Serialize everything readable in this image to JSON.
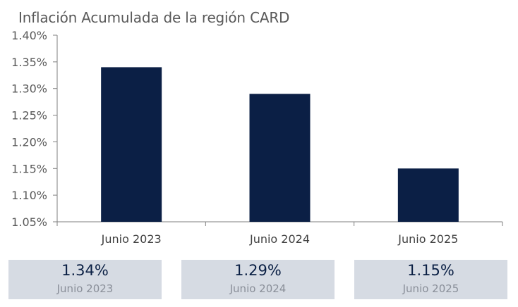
{
  "colors": {
    "bar": "#0b1f45",
    "axis": "#7f7f7f",
    "text": "#595959",
    "summary_bg": "#d6dbe3"
  },
  "chart_data": {
    "type": "bar",
    "title": "Inflación Acumulada de la región CARD",
    "categories": [
      "Junio 2023",
      "Junio 2024",
      "Junio 2025"
    ],
    "values": [
      1.34,
      1.29,
      1.15
    ],
    "ylim": [
      1.05,
      1.4
    ],
    "yticks": [
      1.05,
      1.1,
      1.15,
      1.2,
      1.25,
      1.3,
      1.35,
      1.4
    ],
    "ytick_labels": [
      "1.05%",
      "1.10%",
      "1.15%",
      "1.20%",
      "1.25%",
      "1.30%",
      "1.35%",
      "1.40%"
    ],
    "xlabel": "",
    "ylabel": "",
    "grid": false,
    "legend": "none"
  },
  "summary": [
    {
      "value": "1.34%",
      "label": "Junio 2023"
    },
    {
      "value": "1.29%",
      "label": "Junio 2024"
    },
    {
      "value": "1.15%",
      "label": "Junio 2025"
    }
  ]
}
